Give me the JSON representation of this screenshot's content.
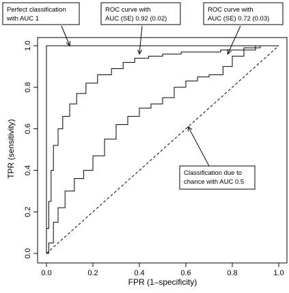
{
  "chart_data": {
    "type": "line",
    "title": "",
    "xlabel": "FPR (1–specificity)",
    "ylabel": "TPR (sensitivity)",
    "xlim": [
      0,
      1
    ],
    "ylim": [
      0,
      1
    ],
    "x_ticks": [
      "0.0",
      "0.2",
      "0.4",
      "0.6",
      "0.8",
      "1.0"
    ],
    "y_ticks": [
      "0.0",
      "0.2",
      "0.4",
      "0.6",
      "0.8",
      "1.0"
    ],
    "grid": false,
    "legend": "none",
    "series": [
      {
        "style": "solid",
        "step": false,
        "points": [
          [
            0,
            0
          ],
          [
            0,
            1
          ],
          [
            1,
            1
          ]
        ]
      },
      {
        "style": "solid",
        "step": true,
        "points": [
          [
            0,
            0
          ],
          [
            0,
            0.12
          ],
          [
            0.01,
            0.25
          ],
          [
            0.02,
            0.4
          ],
          [
            0.03,
            0.52
          ],
          [
            0.05,
            0.6
          ],
          [
            0.07,
            0.66
          ],
          [
            0.1,
            0.72
          ],
          [
            0.13,
            0.77
          ],
          [
            0.17,
            0.82
          ],
          [
            0.22,
            0.86
          ],
          [
            0.28,
            0.89
          ],
          [
            0.33,
            0.92
          ],
          [
            0.38,
            0.94
          ],
          [
            0.44,
            0.95
          ],
          [
            0.5,
            0.96
          ],
          [
            0.58,
            0.97
          ],
          [
            0.67,
            0.97
          ],
          [
            0.75,
            0.98
          ],
          [
            0.85,
            0.99
          ],
          [
            0.92,
            1.0
          ],
          [
            1.0,
            1.0
          ]
        ]
      },
      {
        "style": "solid",
        "step": true,
        "points": [
          [
            0,
            0
          ],
          [
            0.01,
            0.05
          ],
          [
            0.03,
            0.15
          ],
          [
            0.05,
            0.22
          ],
          [
            0.08,
            0.3
          ],
          [
            0.12,
            0.36
          ],
          [
            0.16,
            0.4
          ],
          [
            0.2,
            0.47
          ],
          [
            0.25,
            0.55
          ],
          [
            0.3,
            0.62
          ],
          [
            0.35,
            0.66
          ],
          [
            0.4,
            0.7
          ],
          [
            0.45,
            0.72
          ],
          [
            0.5,
            0.75
          ],
          [
            0.55,
            0.8
          ],
          [
            0.6,
            0.83
          ],
          [
            0.65,
            0.85
          ],
          [
            0.7,
            0.86
          ],
          [
            0.76,
            0.9
          ],
          [
            0.8,
            0.95
          ],
          [
            0.85,
            0.98
          ],
          [
            0.9,
            1.0
          ],
          [
            1.0,
            1.0
          ]
        ]
      },
      {
        "style": "dashed",
        "step": false,
        "points": [
          [
            0,
            0
          ],
          [
            1,
            1
          ]
        ]
      }
    ],
    "annotations": [
      {
        "lines": [
          "Perfect classification",
          "with AUC 1"
        ],
        "target": [
          0.1,
          1.0
        ]
      },
      {
        "lines": [
          "ROC curve with",
          "AUC (SE) 0.92 (0.02)"
        ],
        "target": [
          0.4,
          0.96
        ]
      },
      {
        "lines": [
          "ROC curve with",
          "AUC (SE) 0.72 (0.03)"
        ],
        "target": [
          0.78,
          0.96
        ]
      },
      {
        "lines": [
          "Classification due to",
          "chance with AUC 0.5"
        ],
        "target": [
          0.61,
          0.61
        ]
      }
    ]
  }
}
